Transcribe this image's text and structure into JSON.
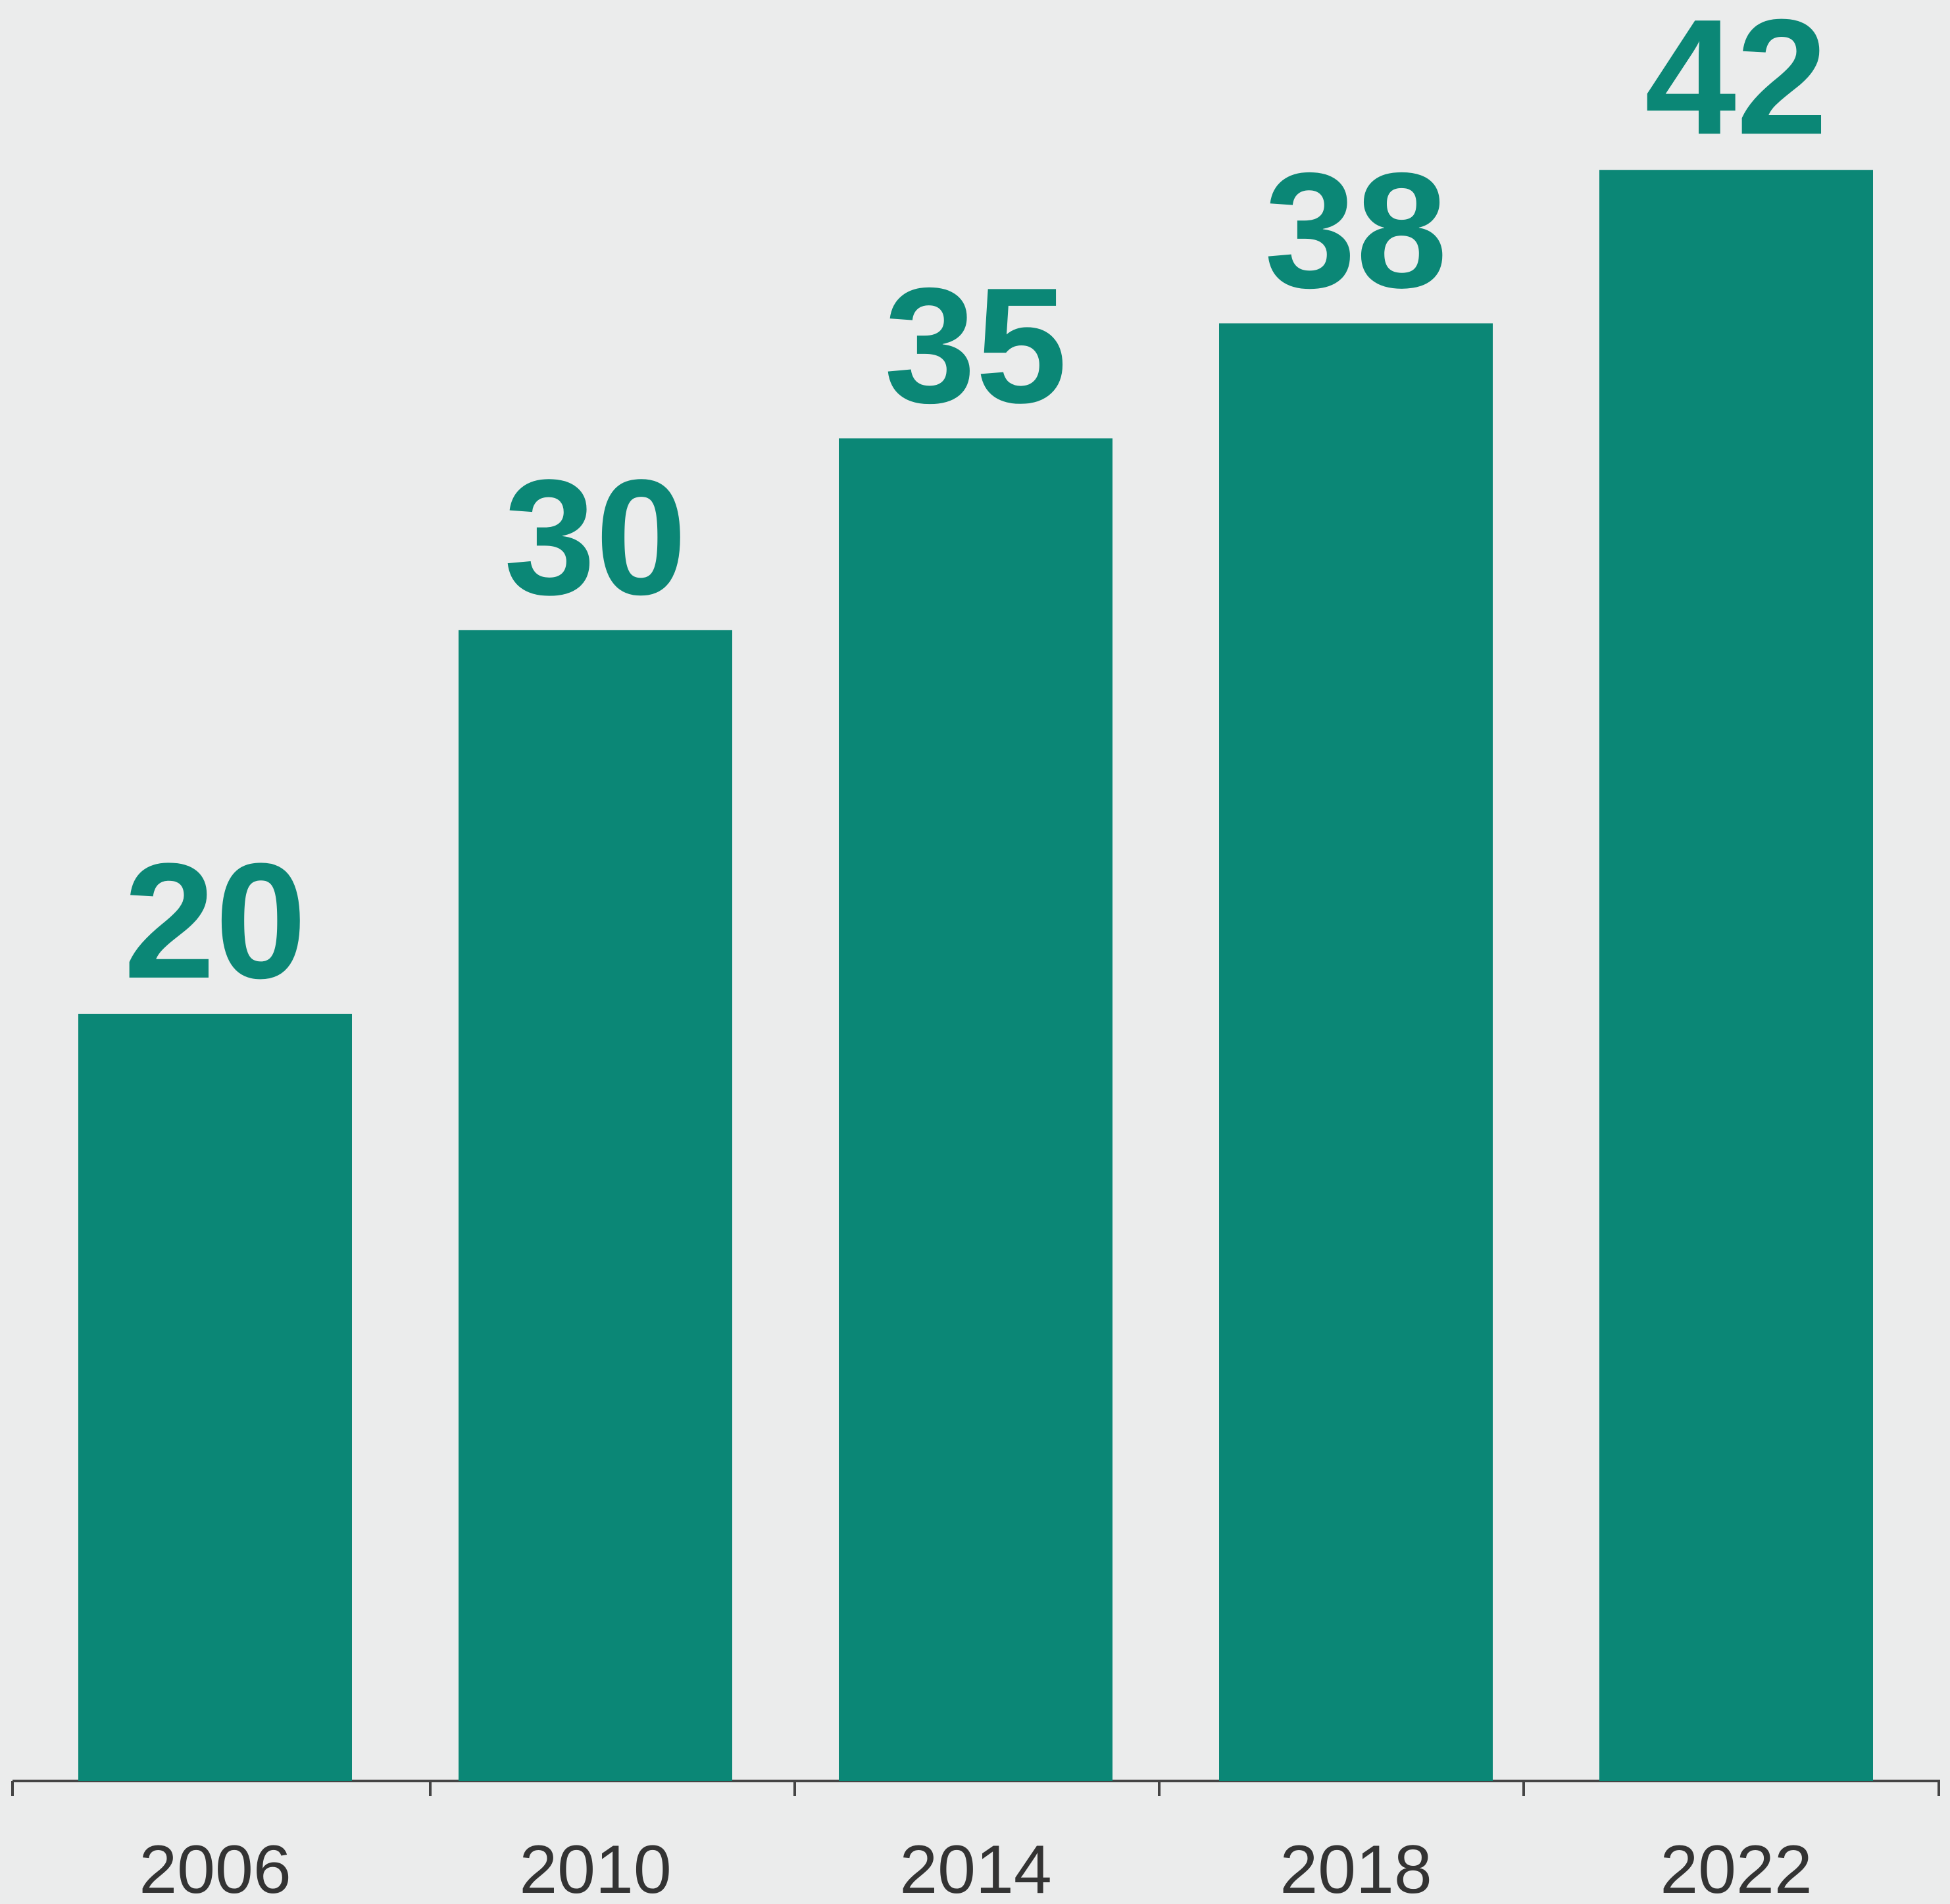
{
  "chart_data": {
    "type": "bar",
    "categories": [
      "2006",
      "2010",
      "2014",
      "2018",
      "2022"
    ],
    "values": [
      20,
      30,
      35,
      38,
      42
    ],
    "color": "#0b8776",
    "ylim": [
      0,
      46
    ]
  }
}
